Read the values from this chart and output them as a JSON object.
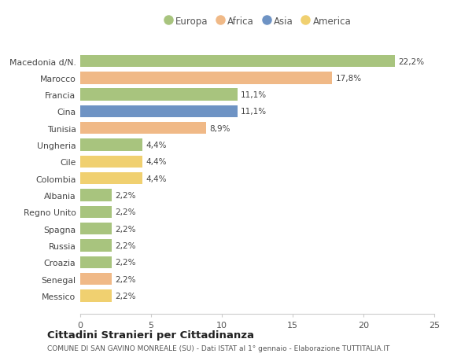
{
  "categories": [
    "Macedonia d/N.",
    "Marocco",
    "Francia",
    "Cina",
    "Tunisia",
    "Ungheria",
    "Cile",
    "Colombia",
    "Albania",
    "Regno Unito",
    "Spagna",
    "Russia",
    "Croazia",
    "Senegal",
    "Messico"
  ],
  "values": [
    22.2,
    17.8,
    11.1,
    11.1,
    8.9,
    4.4,
    4.4,
    4.4,
    2.2,
    2.2,
    2.2,
    2.2,
    2.2,
    2.2,
    2.2
  ],
  "colors": [
    "#a8c47e",
    "#f0b987",
    "#a8c47e",
    "#6e93c4",
    "#f0b987",
    "#a8c47e",
    "#f0d070",
    "#f0d070",
    "#a8c47e",
    "#a8c47e",
    "#a8c47e",
    "#a8c47e",
    "#a8c47e",
    "#f0b987",
    "#f0d070"
  ],
  "labels": [
    "22,2%",
    "17,8%",
    "11,1%",
    "11,1%",
    "8,9%",
    "4,4%",
    "4,4%",
    "4,4%",
    "2,2%",
    "2,2%",
    "2,2%",
    "2,2%",
    "2,2%",
    "2,2%",
    "2,2%"
  ],
  "legend_labels": [
    "Europa",
    "Africa",
    "Asia",
    "America"
  ],
  "legend_colors": [
    "#a8c47e",
    "#f0b987",
    "#6e93c4",
    "#f0d070"
  ],
  "title": "Cittadini Stranieri per Cittadinanza",
  "subtitle": "COMUNE DI SAN GAVINO MONREALE (SU) - Dati ISTAT al 1° gennaio - Elaborazione TUTTITALIA.IT",
  "xlim": [
    0,
    25
  ],
  "xticks": [
    0,
    5,
    10,
    15,
    20,
    25
  ],
  "bg_color": "#ffffff",
  "plot_bg_color": "#ffffff"
}
